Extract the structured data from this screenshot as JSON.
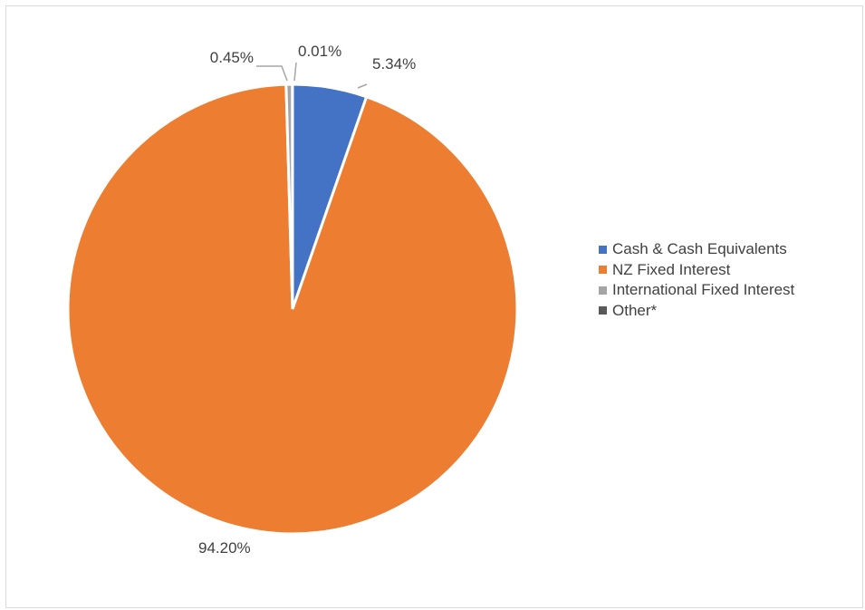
{
  "chart_data": {
    "type": "pie",
    "categories": [
      "Cash & Cash Equivalents",
      "NZ Fixed Interest",
      "International Fixed Interest",
      "Other*"
    ],
    "values": [
      5.34,
      94.2,
      0.45,
      0.01
    ],
    "data_labels": [
      "5.34%",
      "94.20%",
      "0.45%",
      "0.01%"
    ],
    "colors": [
      "#4472c4",
      "#ed7d31",
      "#a5a5a5",
      "#595959"
    ],
    "legend_position": "right",
    "title": ""
  }
}
